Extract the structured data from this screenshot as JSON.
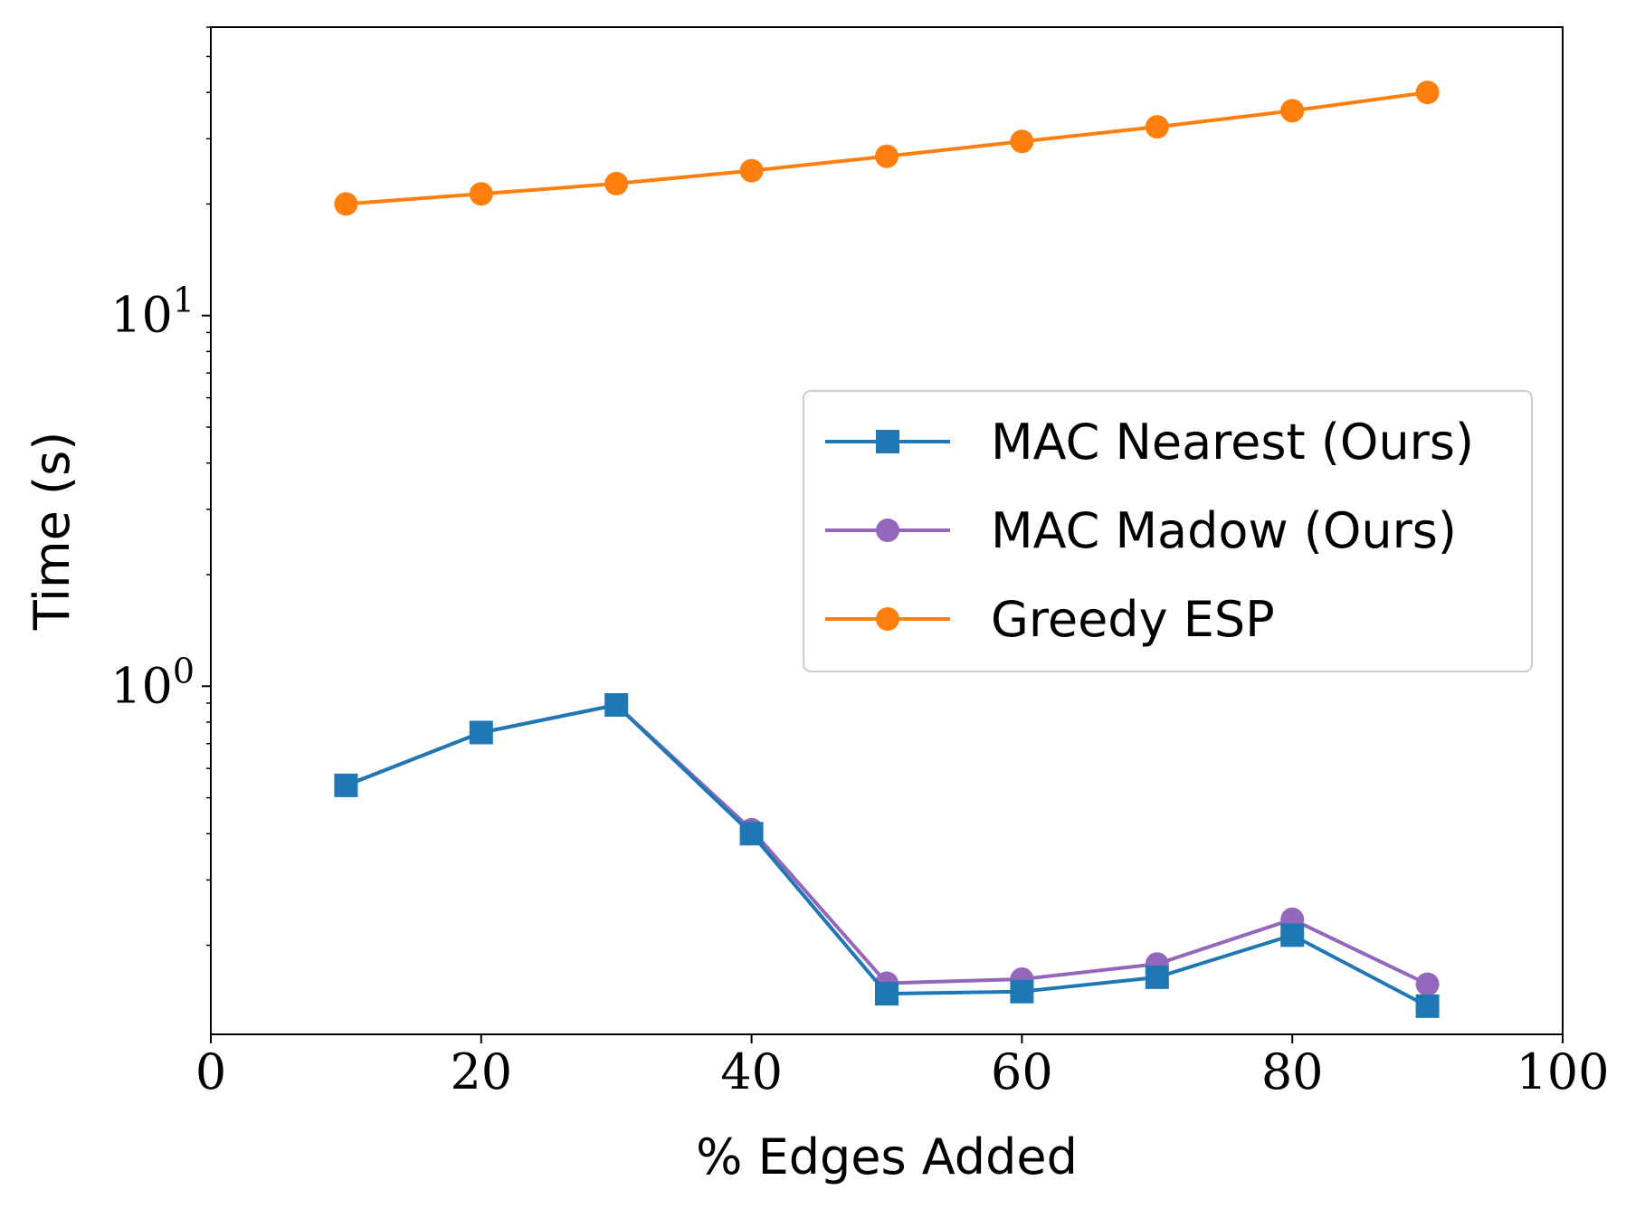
{
  "chart_data": {
    "type": "line",
    "xlabel": "% Edges Added",
    "ylabel": "Time (s)",
    "xlim": [
      0,
      100
    ],
    "ylim": [
      0.115,
      60
    ],
    "yscale": "log",
    "x_ticks": [
      0,
      20,
      40,
      60,
      80,
      100
    ],
    "x_tick_labels": [
      "0",
      "20",
      "40",
      "60",
      "80",
      "100"
    ],
    "y_major_ticks": [
      {
        "value": 1,
        "base": "10",
        "exp": "0"
      },
      {
        "value": 10,
        "base": "10",
        "exp": "1"
      }
    ],
    "x": [
      10,
      20,
      30,
      40,
      50,
      60,
      70,
      80,
      90
    ],
    "series": [
      {
        "name": "MAC Nearest (Ours)",
        "color": "#1f77b4",
        "marker": "square",
        "values": [
          0.54,
          0.75,
          0.89,
          0.4,
          0.148,
          0.15,
          0.164,
          0.213,
          0.137
        ]
      },
      {
        "name": "MAC Madow (Ours)",
        "color": "#9467bd",
        "marker": "circle",
        "values": [
          0.54,
          0.75,
          0.89,
          0.41,
          0.158,
          0.162,
          0.178,
          0.235,
          0.157
        ]
      },
      {
        "name": "Greedy ESP",
        "color": "#ff7f0e",
        "marker": "circle",
        "values": [
          20.0,
          21.3,
          22.7,
          24.6,
          26.9,
          29.5,
          32.3,
          35.7,
          40.0
        ]
      }
    ],
    "legend": {
      "position": "center-right"
    }
  }
}
